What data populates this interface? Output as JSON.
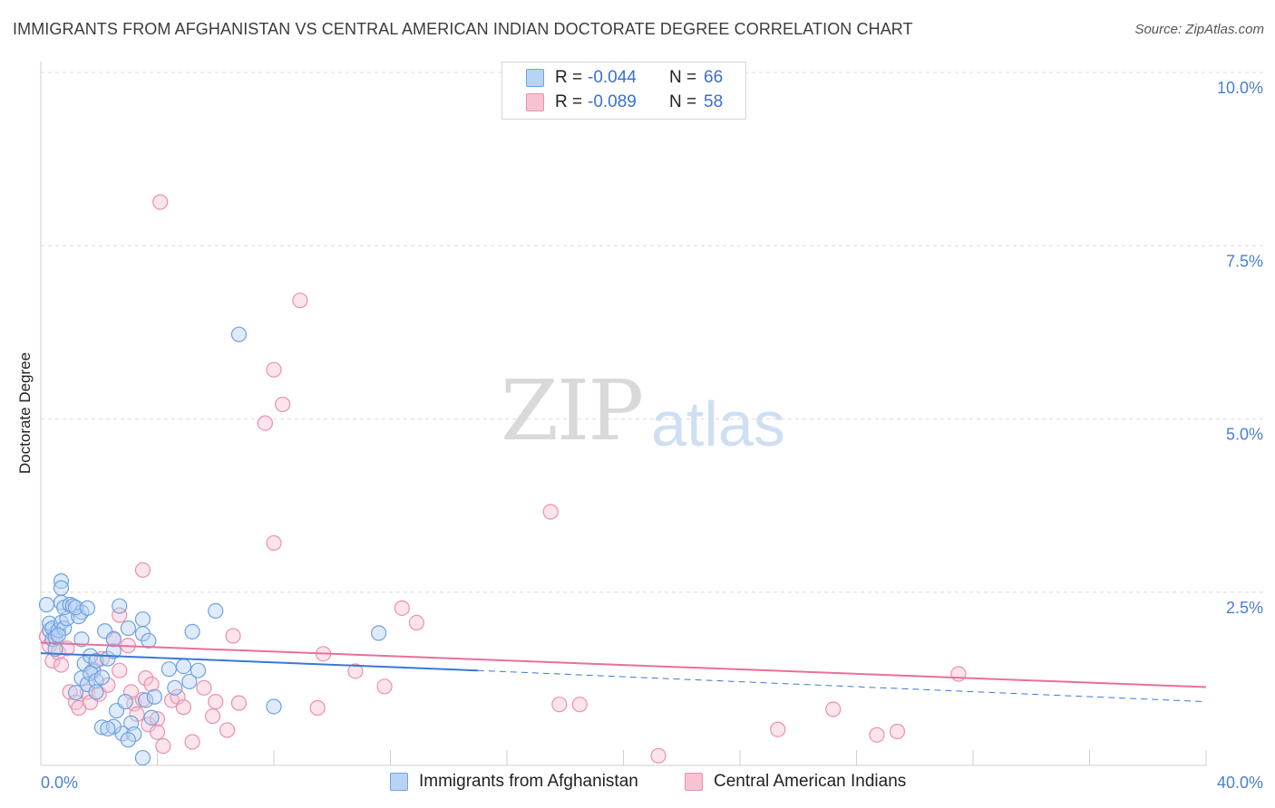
{
  "title": "IMMIGRANTS FROM AFGHANISTAN VS CENTRAL AMERICAN INDIAN DOCTORATE DEGREE CORRELATION CHART",
  "source": "Source: ZipAtlas.com",
  "watermark": {
    "zip": "ZIP",
    "atlas": "atlas"
  },
  "legend": {
    "rows": [
      {
        "r_label": "R =",
        "r_value": "-0.044",
        "n_label": "N =",
        "n_value": "66"
      },
      {
        "r_label": "R =",
        "r_value": "-0.089",
        "n_label": "N =",
        "n_value": "58"
      }
    ]
  },
  "colors": {
    "blue_fill": "#b9d3f5",
    "blue_stroke": "#6fa1e0",
    "blue_line": "#3a78d6",
    "pink_fill": "#f7c3d3",
    "pink_stroke": "#ec8fae",
    "pink_line": "#e8709a"
  },
  "chart_data": {
    "type": "scatter",
    "title": "IMMIGRANTS FROM AFGHANISTAN VS CENTRAL AMERICAN INDIAN DOCTORATE DEGREE CORRELATION CHART",
    "xlabel": "",
    "ylabel": "Doctorate Degree",
    "xlim": [
      0,
      40
    ],
    "ylim": [
      0,
      10
    ],
    "x_tick_labels": [
      "0.0%",
      "40.0%"
    ],
    "y_ticks": [
      2.5,
      5.0,
      7.5,
      10.0
    ],
    "y_tick_labels": [
      "2.5%",
      "5.0%",
      "7.5%",
      "10.0%"
    ],
    "grid": true,
    "legend_position": "top-center",
    "series": [
      {
        "name": "Immigrants from Afghanistan",
        "trend": {
          "x": [
            0,
            15
          ],
          "y": [
            1.62,
            1.37
          ],
          "dashed_to": [
            40,
            0.92
          ]
        },
        "points": [
          [
            0.2,
            2.32
          ],
          [
            0.3,
            1.95
          ],
          [
            0.4,
            1.82
          ],
          [
            0.5,
            1.68
          ],
          [
            0.3,
            2.05
          ],
          [
            0.4,
            1.98
          ],
          [
            0.5,
            1.85
          ],
          [
            0.6,
            1.95
          ],
          [
            0.7,
            2.06
          ],
          [
            0.8,
            1.98
          ],
          [
            0.9,
            2.12
          ],
          [
            0.6,
            1.88
          ],
          [
            0.7,
            2.35
          ],
          [
            0.8,
            2.28
          ],
          [
            1.0,
            2.32
          ],
          [
            1.1,
            2.3
          ],
          [
            0.7,
            2.66
          ],
          [
            0.7,
            2.56
          ],
          [
            1.4,
            2.21
          ],
          [
            1.3,
            2.15
          ],
          [
            1.2,
            2.28
          ],
          [
            1.4,
            1.82
          ],
          [
            1.6,
            2.27
          ],
          [
            1.5,
            1.47
          ],
          [
            1.7,
            1.58
          ],
          [
            1.8,
            1.36
          ],
          [
            1.9,
            1.51
          ],
          [
            1.2,
            1.05
          ],
          [
            1.4,
            1.26
          ],
          [
            1.6,
            1.17
          ],
          [
            1.7,
            1.33
          ],
          [
            1.9,
            1.22
          ],
          [
            2.1,
            1.27
          ],
          [
            2.3,
            1.54
          ],
          [
            2.5,
            1.65
          ],
          [
            2.2,
            1.94
          ],
          [
            2.7,
            2.3
          ],
          [
            3.0,
            1.98
          ],
          [
            3.5,
            2.11
          ],
          [
            3.5,
            1.9
          ],
          [
            3.7,
            1.8
          ],
          [
            2.5,
            1.82
          ],
          [
            1.9,
            1.06
          ],
          [
            2.1,
            0.55
          ],
          [
            2.6,
            0.79
          ],
          [
            2.9,
            0.92
          ],
          [
            3.1,
            0.61
          ],
          [
            2.8,
            0.46
          ],
          [
            3.2,
            0.45
          ],
          [
            3.0,
            0.37
          ],
          [
            2.5,
            0.56
          ],
          [
            2.3,
            0.53
          ],
          [
            3.8,
            0.69
          ],
          [
            3.6,
            0.94
          ],
          [
            3.9,
            0.99
          ],
          [
            4.4,
            1.39
          ],
          [
            4.6,
            1.12
          ],
          [
            4.9,
            1.43
          ],
          [
            5.1,
            1.21
          ],
          [
            5.4,
            1.37
          ],
          [
            5.2,
            1.93
          ],
          [
            6.0,
            2.23
          ],
          [
            6.8,
            6.22
          ],
          [
            8.0,
            0.85
          ],
          [
            11.6,
            1.91
          ],
          [
            3.5,
            0.11
          ]
        ]
      },
      {
        "name": "Central American Indians",
        "trend": {
          "x": [
            0,
            40
          ],
          "y": [
            1.77,
            1.13
          ]
        },
        "points": [
          [
            0.2,
            1.86
          ],
          [
            0.3,
            1.73
          ],
          [
            0.4,
            1.51
          ],
          [
            0.5,
            1.91
          ],
          [
            0.6,
            1.63
          ],
          [
            0.7,
            1.45
          ],
          [
            0.9,
            1.69
          ],
          [
            1.0,
            1.06
          ],
          [
            1.2,
            0.91
          ],
          [
            1.3,
            0.83
          ],
          [
            1.6,
            1.06
          ],
          [
            1.7,
            0.91
          ],
          [
            1.8,
            1.38
          ],
          [
            2.0,
            1.03
          ],
          [
            2.1,
            1.54
          ],
          [
            2.3,
            1.16
          ],
          [
            2.5,
            1.83
          ],
          [
            2.7,
            1.37
          ],
          [
            2.7,
            2.17
          ],
          [
            3.0,
            1.73
          ],
          [
            3.1,
            1.06
          ],
          [
            3.2,
            0.89
          ],
          [
            3.3,
            0.74
          ],
          [
            3.5,
            0.95
          ],
          [
            3.6,
            1.26
          ],
          [
            3.7,
            0.59
          ],
          [
            3.8,
            1.17
          ],
          [
            4.0,
            0.67
          ],
          [
            4.0,
            0.48
          ],
          [
            3.5,
            2.82
          ],
          [
            4.2,
            0.28
          ],
          [
            4.5,
            0.94
          ],
          [
            4.7,
            0.99
          ],
          [
            4.9,
            0.84
          ],
          [
            5.2,
            0.34
          ],
          [
            5.6,
            1.12
          ],
          [
            5.9,
            0.71
          ],
          [
            6.0,
            0.92
          ],
          [
            6.4,
            0.51
          ],
          [
            6.6,
            1.87
          ],
          [
            6.8,
            0.9
          ],
          [
            4.1,
            8.13
          ],
          [
            7.7,
            4.94
          ],
          [
            8.0,
            5.71
          ],
          [
            8.3,
            5.21
          ],
          [
            8.0,
            3.21
          ],
          [
            8.9,
            6.71
          ],
          [
            9.5,
            0.83
          ],
          [
            9.7,
            1.61
          ],
          [
            10.8,
            1.36
          ],
          [
            11.8,
            1.14
          ],
          [
            12.4,
            2.27
          ],
          [
            12.9,
            2.06
          ],
          [
            17.5,
            3.66
          ],
          [
            17.8,
            0.88
          ],
          [
            18.5,
            0.88
          ],
          [
            31.5,
            1.32
          ],
          [
            29.4,
            0.49
          ]
        ]
      }
    ],
    "extra_points_pink": [
      [
        21.2,
        0.14
      ],
      [
        25.3,
        0.52
      ],
      [
        27.2,
        0.81
      ],
      [
        28.7,
        0.44
      ]
    ]
  },
  "bottom_legend": [
    {
      "label": "Immigrants from Afghanistan"
    },
    {
      "label": "Central American Indians"
    }
  ]
}
